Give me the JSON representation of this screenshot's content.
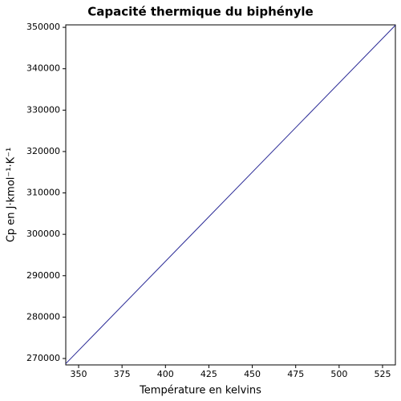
{
  "chart_data": {
    "type": "line",
    "title": "Capacité thermique du biphényle",
    "x_label": "Température en kelvins",
    "y_label": "Cp en J·kmol⁻¹·K⁻¹",
    "x": [
      342.6,
      532.4
    ],
    "series": [
      {
        "name": "Cp",
        "color": "#2a2a96",
        "values": [
          268750,
          350500
        ]
      }
    ],
    "xlim": [
      342.6,
      532.4
    ],
    "ylim": [
      268450,
      350600
    ],
    "xticks": [
      350,
      375,
      400,
      425,
      450,
      475,
      500,
      525
    ],
    "yticks": [
      270000,
      280000,
      290000,
      300000,
      310000,
      320000,
      330000,
      340000,
      350000
    ]
  }
}
